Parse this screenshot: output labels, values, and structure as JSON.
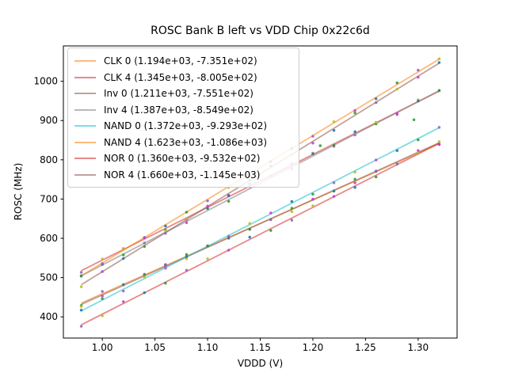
{
  "window": {
    "kind": "matplotlib-figure"
  },
  "chart_data": {
    "type": "scatter",
    "title": "ROSC Bank B left vs VDD Chip 0x22c6d",
    "xlabel": "VDDD (V)",
    "ylabel": "ROSC (MHz)",
    "grid": false,
    "legend_position": "upper left",
    "xlim": [
      0.963,
      1.337
    ],
    "ylim": [
      346,
      1090
    ],
    "x_ticks": [
      "1.00",
      "1.05",
      "1.10",
      "1.15",
      "1.20",
      "1.25",
      "1.30"
    ],
    "x_tick_values": [
      1.0,
      1.05,
      1.1,
      1.15,
      1.2,
      1.25,
      1.3
    ],
    "y_ticks": [
      "400",
      "500",
      "600",
      "700",
      "800",
      "900",
      "1000"
    ],
    "y_tick_values": [
      400,
      500,
      600,
      700,
      800,
      900,
      1000
    ],
    "x_data_range": [
      0.98,
      1.32
    ],
    "x_step": 0.02,
    "points_per_series": 18,
    "series": [
      {
        "name": "CLK 0",
        "label": "CLK 0 (1.194e+03, -7.351e+02)",
        "slope": 1194,
        "intercept": -735.1,
        "color": "#ff7f0e"
      },
      {
        "name": "CLK 4",
        "label": "CLK 4 (1.345e+03, -8.005e+02)",
        "slope": 1345,
        "intercept": -800.5,
        "color": "#d62728"
      },
      {
        "name": "Inv 0",
        "label": "Inv 0 (1.211e+03, -7.551e+02)",
        "slope": 1211,
        "intercept": -755.1,
        "color": "#8c564b"
      },
      {
        "name": "Inv 4",
        "label": "Inv 4 (1.387e+03, -8.549e+02)",
        "slope": 1387,
        "intercept": -854.9,
        "color": "#7f7f7f"
      },
      {
        "name": "NAND 0",
        "label": "NAND 0 (1.372e+03, -9.293e+02)",
        "slope": 1372,
        "intercept": -929.3,
        "color": "#17becf"
      },
      {
        "name": "NAND 4",
        "label": "NAND 4 (1.623e+03, -1.086e+03)",
        "slope": 1623,
        "intercept": -1086.0,
        "color": "#ff7f0e"
      },
      {
        "name": "NOR 0",
        "label": "NOR 0 (1.360e+03, -9.532e+02)",
        "slope": 1360,
        "intercept": -953.2,
        "color": "#d62728"
      },
      {
        "name": "NOR 4",
        "label": "NOR 4 (1.660e+03, -1.145e+03)",
        "slope": 1660,
        "intercept": -1145.0,
        "color": "#8c564b"
      }
    ],
    "marker_colors": [
      "#2ca02c",
      "#9467bd",
      "#bcbd22",
      "#cc3ecc",
      "#1f77b4"
    ],
    "outlier_points": [
      {
        "x": 1.296,
        "y": 902,
        "color": "#2ca02c"
      },
      {
        "x": 1.207,
        "y": 836,
        "color": "#2ca02c"
      }
    ],
    "line_opacity": 0.55,
    "line_width": 1.8,
    "marker_radius": 1.75
  }
}
